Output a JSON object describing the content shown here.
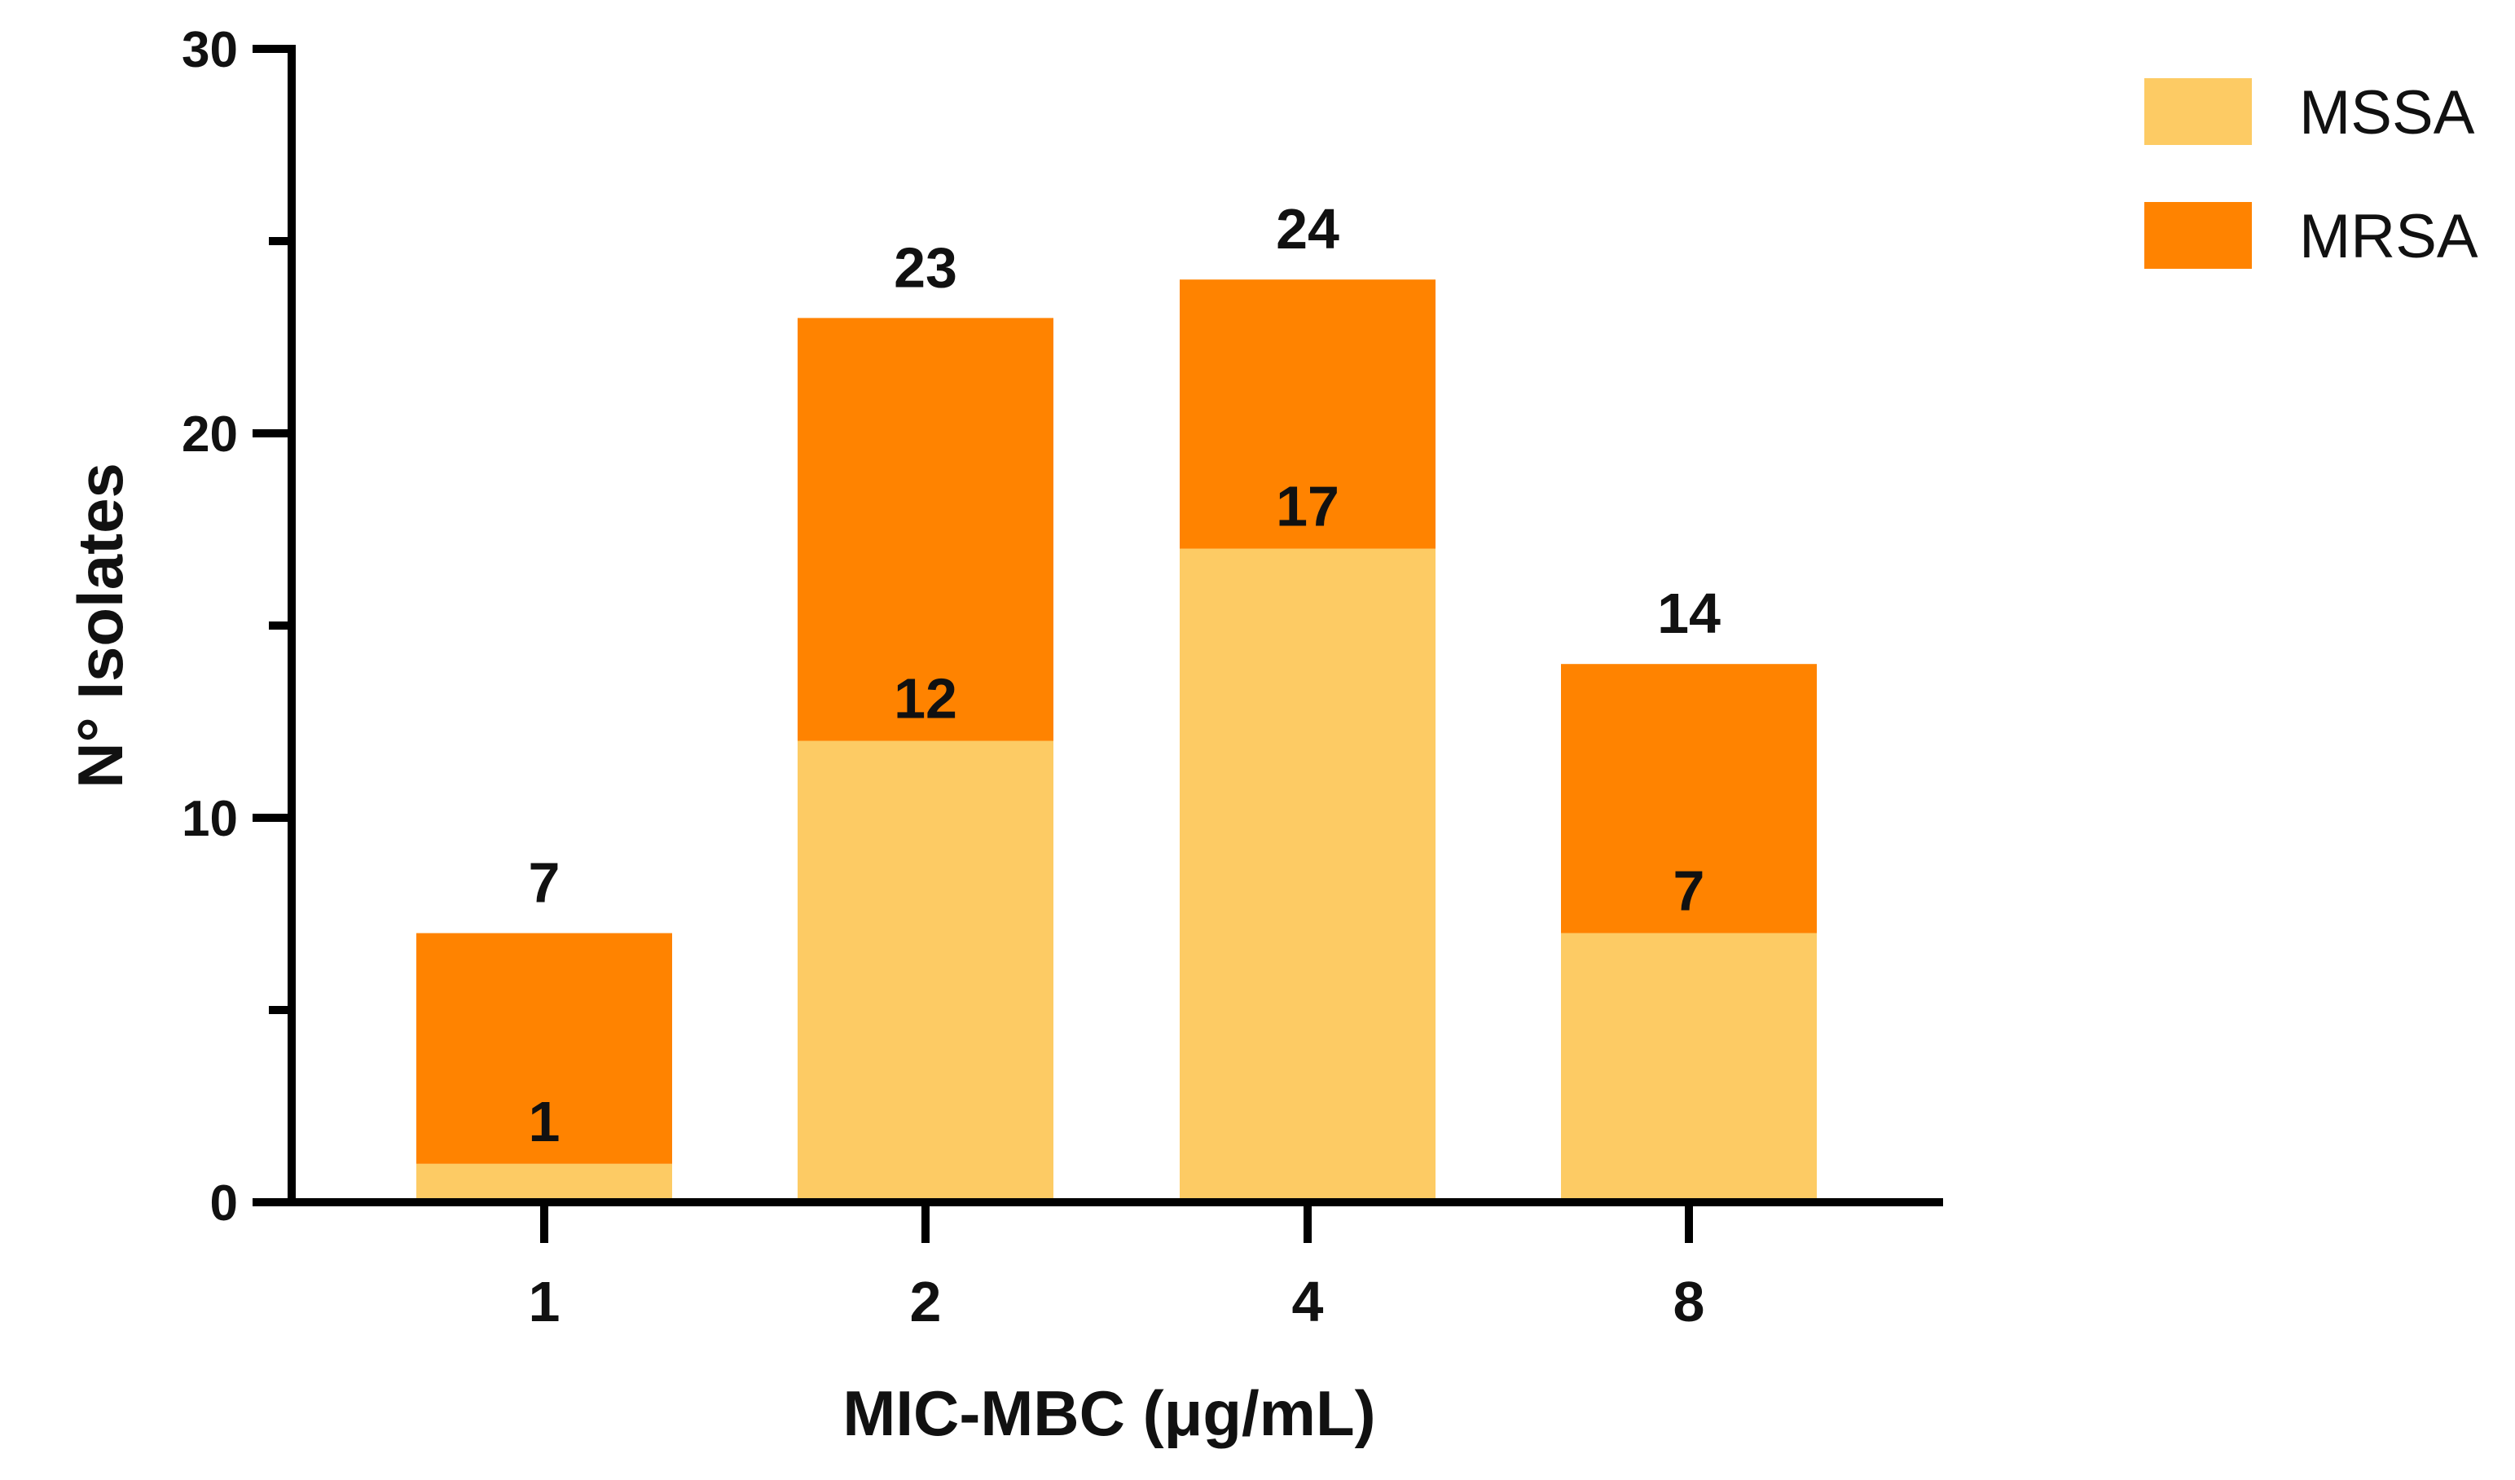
{
  "chart_data": {
    "type": "bar",
    "stacked": true,
    "categories": [
      "1",
      "2",
      "4",
      "8"
    ],
    "series": [
      {
        "name": "MSSA",
        "values": [
          1,
          12,
          17,
          7
        ],
        "color": "#FDCB64"
      },
      {
        "name": "MRSA",
        "values": [
          6,
          11,
          7,
          7
        ],
        "color": "#FF8300"
      }
    ],
    "inner_labels": [
      "1",
      "12",
      "17",
      "7"
    ],
    "total_labels": [
      "7",
      "23",
      "24",
      "14"
    ],
    "title": "",
    "xlabel": "MIC-MBC (μg/mL)",
    "ylabel": "N° Isolates",
    "ylim": [
      0,
      30
    ],
    "y_major_ticks": [
      0,
      10,
      20,
      30
    ],
    "y_minor_ticks": [
      5,
      15,
      25
    ],
    "grid": false,
    "legend_position": "top-right"
  }
}
